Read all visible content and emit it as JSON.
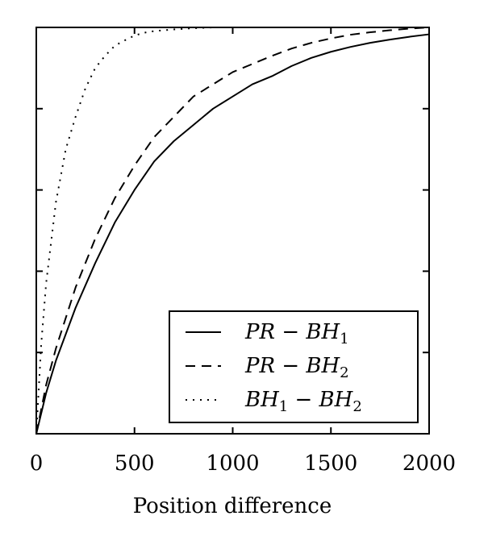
{
  "chart_data": {
    "type": "line",
    "title": "",
    "xlabel": "Position difference",
    "ylabel": "",
    "xlim": [
      0,
      2000
    ],
    "ylim": [
      0,
      1
    ],
    "xticks": [
      0,
      500,
      1000,
      1500,
      2000
    ],
    "xtick_labels": [
      "0",
      "500",
      "1000",
      "1500",
      "2000"
    ],
    "yticks": [
      0,
      0.2,
      0.4,
      0.6,
      0.8,
      1.0
    ],
    "ytick_labels_shown": false,
    "grid": false,
    "legend_position": "bottom-right",
    "series": [
      {
        "name": "PR − BH1",
        "legend_main": "PR − BH",
        "legend_sub": "1",
        "style": "solid",
        "color": "#000000",
        "x": [
          0,
          50,
          100,
          200,
          300,
          400,
          500,
          600,
          700,
          800,
          900,
          1000,
          1100,
          1200,
          1300,
          1400,
          1500,
          1600,
          1700,
          1800,
          1900,
          2000
        ],
        "y": [
          0,
          0.1,
          0.18,
          0.31,
          0.42,
          0.52,
          0.6,
          0.67,
          0.72,
          0.76,
          0.8,
          0.83,
          0.86,
          0.88,
          0.905,
          0.925,
          0.94,
          0.952,
          0.962,
          0.97,
          0.977,
          0.983
        ]
      },
      {
        "name": "PR − BH2",
        "legend_main": "PR − BH",
        "legend_sub": "2",
        "style": "dashed",
        "color": "#000000",
        "x": [
          0,
          50,
          100,
          200,
          300,
          400,
          500,
          600,
          700,
          800,
          900,
          1000,
          1100,
          1200,
          1300,
          1400,
          1500,
          1600,
          1700,
          1800,
          1900,
          2000
        ],
        "y": [
          0,
          0.12,
          0.21,
          0.36,
          0.48,
          0.58,
          0.66,
          0.73,
          0.78,
          0.83,
          0.86,
          0.89,
          0.91,
          0.93,
          0.948,
          0.962,
          0.973,
          0.982,
          0.988,
          0.993,
          0.997,
          1.0
        ]
      },
      {
        "name": "BH1 − BH2",
        "legend_main": "BH",
        "legend_mid": " − BH",
        "legend_sub": "1",
        "legend_sub2": "2",
        "style": "dotted",
        "color": "#000000",
        "x": [
          0,
          25,
          50,
          100,
          150,
          200,
          250,
          300,
          350,
          400,
          450,
          500,
          550,
          600,
          700,
          800,
          900,
          1000,
          1200,
          1500
        ],
        "y": [
          0,
          0.22,
          0.37,
          0.57,
          0.7,
          0.78,
          0.85,
          0.9,
          0.93,
          0.955,
          0.968,
          0.98,
          0.987,
          0.991,
          0.995,
          0.998,
          1.0,
          1.0,
          1.0,
          1.0
        ]
      }
    ]
  },
  "legend": {
    "entries": [
      {
        "main": "PR − BH",
        "sub": "1"
      },
      {
        "main": "PR − BH",
        "sub": "2"
      },
      {
        "main": "BH",
        "sub1": "1",
        "mid": " − BH",
        "sub2": "2"
      }
    ]
  }
}
